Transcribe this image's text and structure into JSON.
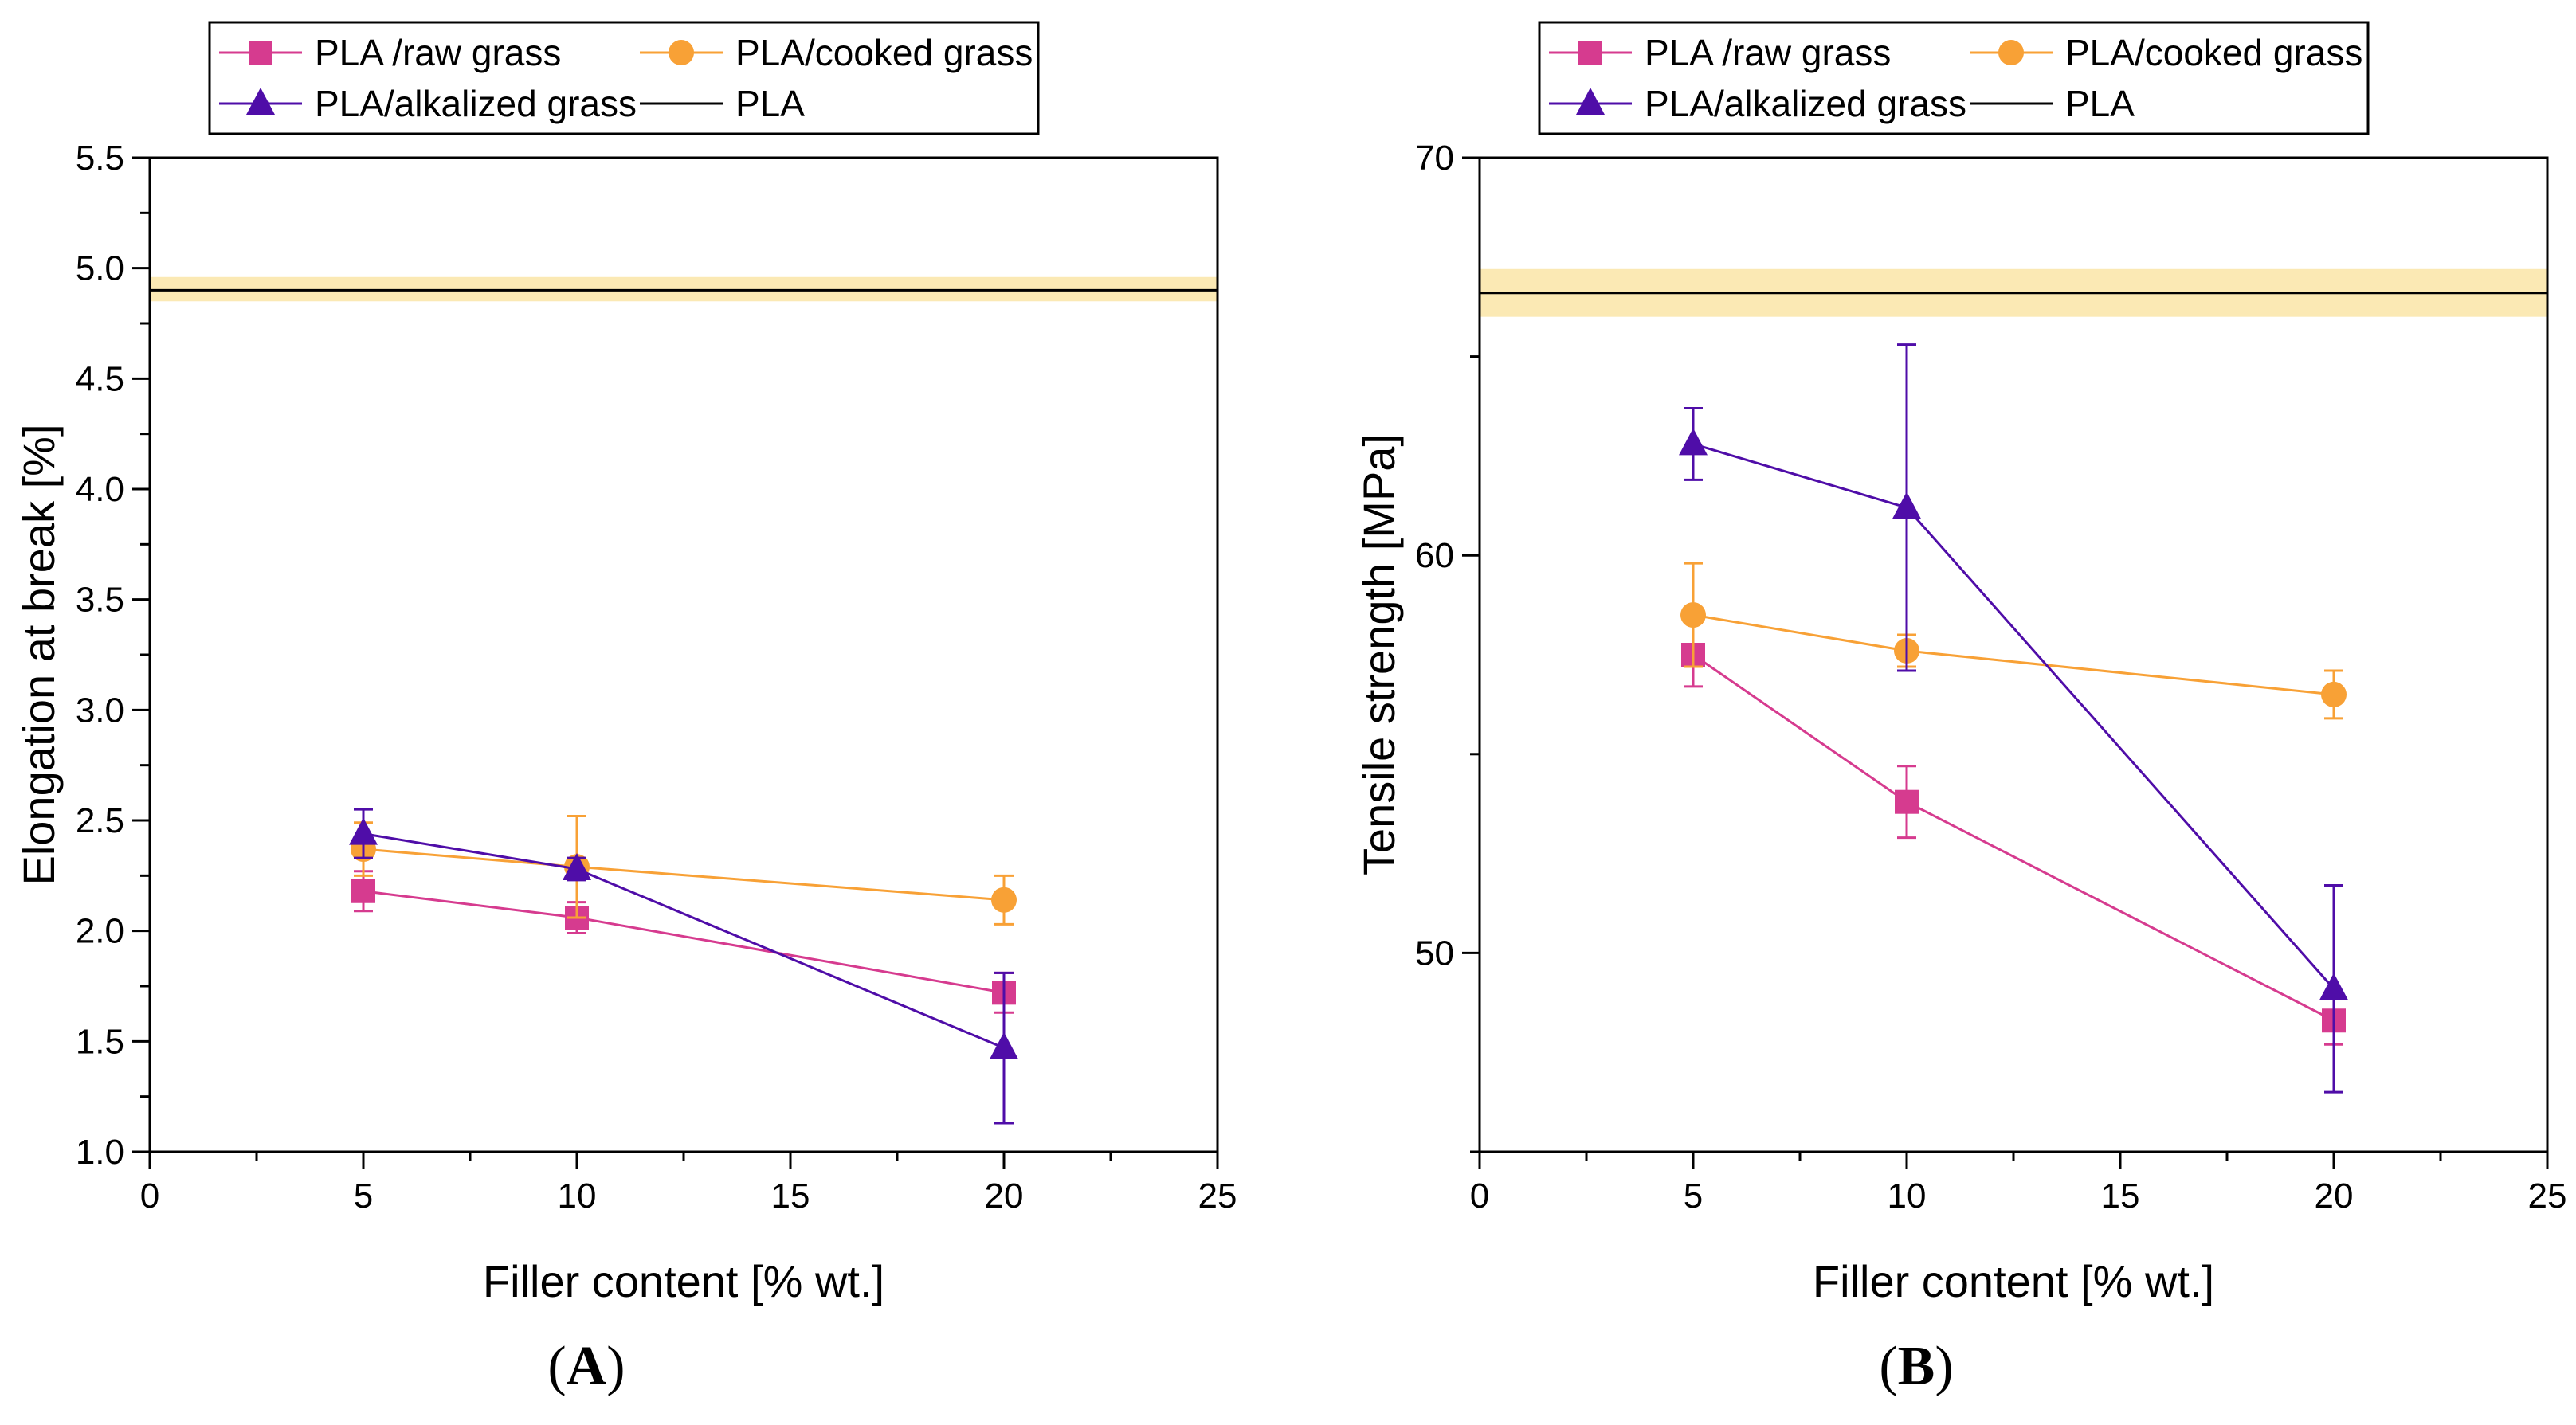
{
  "chart_data": [
    {
      "type": "line",
      "panel": "A",
      "panel_label_parts": [
        "(",
        "A",
        ")"
      ],
      "xlabel": "Filler content [% wt.]",
      "ylabel": "Elongation at break [%]",
      "xlim": [
        0,
        25
      ],
      "ylim": [
        1.0,
        5.5
      ],
      "xticks": [
        0,
        5,
        10,
        15,
        20,
        25
      ],
      "yticks": [
        1.0,
        1.5,
        2.0,
        2.5,
        3.0,
        3.5,
        4.0,
        4.5,
        5.0,
        5.5
      ],
      "ytick_labels": [
        "1.0",
        "1.5",
        "2.0",
        "2.5",
        "3.0",
        "3.5",
        "4.0",
        "4.5",
        "5.0",
        "5.5"
      ],
      "grid": false,
      "legend_position": "top",
      "reference": {
        "name": "PLA",
        "value": 4.9,
        "band": [
          4.85,
          4.96
        ],
        "color": "#000000",
        "band_color": "#fbe9b4"
      },
      "series": [
        {
          "name": "PLA /raw grass",
          "color": "#d63b8f",
          "marker": "square",
          "x": [
            5,
            10,
            20
          ],
          "y": [
            2.18,
            2.06,
            1.72
          ],
          "err": [
            0.09,
            0.07,
            0.09
          ]
        },
        {
          "name": "PLA/cooked grass",
          "color": "#f8a136",
          "marker": "circle",
          "x": [
            5,
            10,
            20
          ],
          "y": [
            2.37,
            2.29,
            2.14
          ],
          "err": [
            0.12,
            0.23,
            0.11
          ]
        },
        {
          "name": "PLA/alkalized grass",
          "color": "#4f0da8",
          "marker": "triangle",
          "x": [
            5,
            10,
            20
          ],
          "y": [
            2.44,
            2.28,
            1.47
          ],
          "err": [
            0.11,
            0.05,
            0.34
          ]
        }
      ]
    },
    {
      "type": "line",
      "panel": "B",
      "panel_label_parts": [
        "(",
        "B",
        ")"
      ],
      "xlabel": "Filler content [% wt.]",
      "ylabel": "Tensile strength [MPa]",
      "xlim": [
        0,
        25
      ],
      "ylim": [
        45,
        70
      ],
      "xticks": [
        0,
        5,
        10,
        15,
        20,
        25
      ],
      "yticks": [
        50,
        60,
        70
      ],
      "ytick_labels": [
        "50",
        "60",
        "70"
      ],
      "grid": false,
      "legend_position": "top",
      "reference": {
        "name": "PLA",
        "value": 66.6,
        "band": [
          66.0,
          67.2
        ],
        "color": "#000000",
        "band_color": "#fbe9b4"
      },
      "series": [
        {
          "name": "PLA /raw grass",
          "color": "#d63b8f",
          "marker": "square",
          "x": [
            5,
            10,
            20
          ],
          "y": [
            57.5,
            53.8,
            48.3
          ],
          "err": [
            0.8,
            0.9,
            0.6
          ]
        },
        {
          "name": "PLA/cooked grass",
          "color": "#f8a136",
          "marker": "circle",
          "x": [
            5,
            10,
            20
          ],
          "y": [
            58.5,
            57.6,
            56.5
          ],
          "err": [
            1.3,
            0.4,
            0.6
          ]
        },
        {
          "name": "PLA/alkalized grass",
          "color": "#4f0da8",
          "marker": "triangle",
          "x": [
            5,
            10,
            20
          ],
          "y": [
            62.8,
            61.2,
            49.1
          ],
          "err": [
            0.9,
            4.1,
            2.6
          ]
        }
      ]
    }
  ]
}
